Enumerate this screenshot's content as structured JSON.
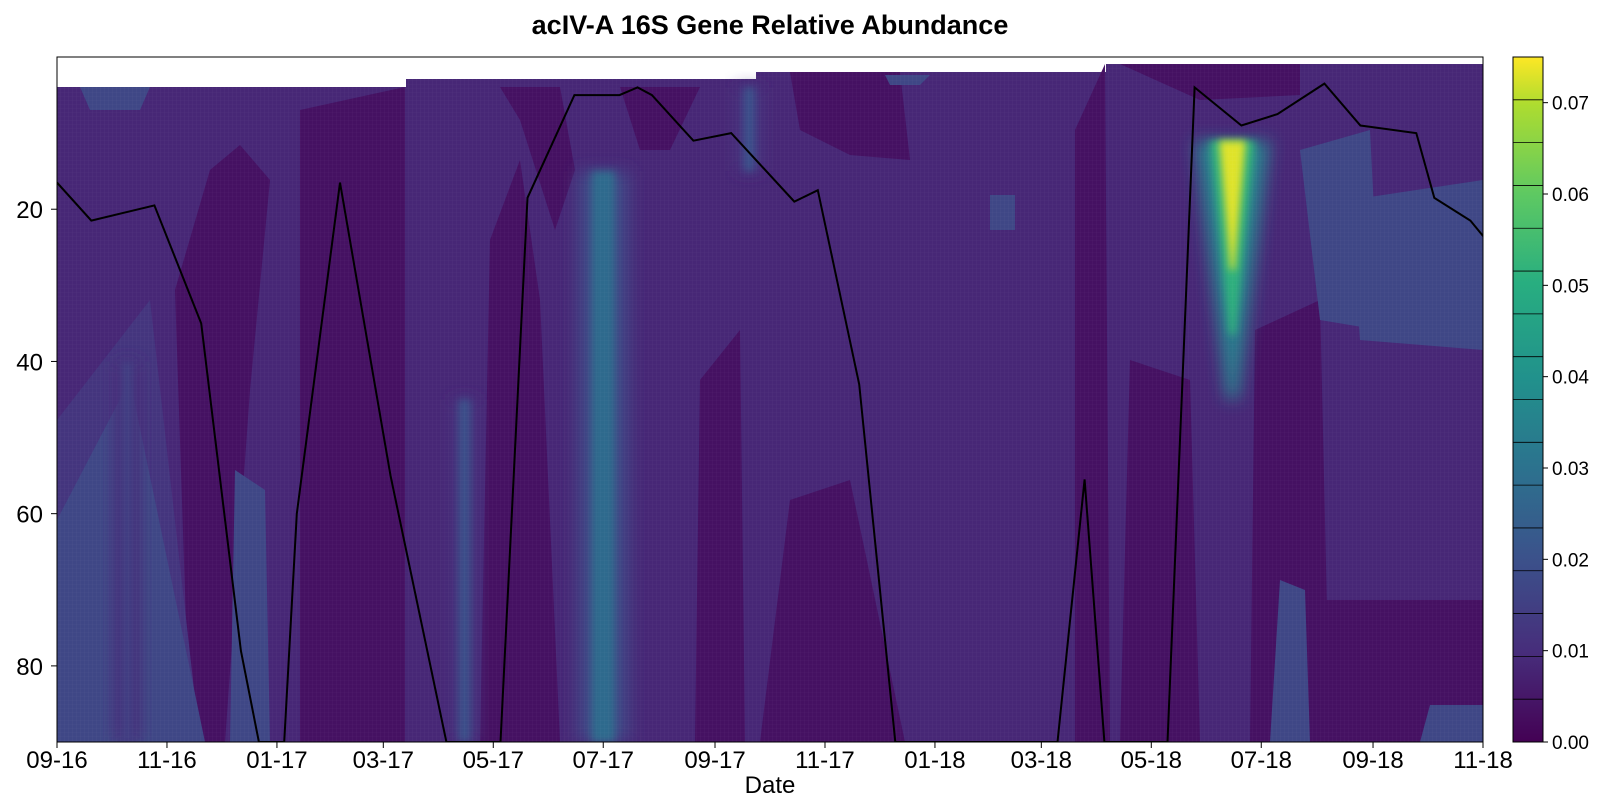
{
  "chart_data": {
    "type": "heatmap",
    "title": "acIV-A 16S Gene Relative Abundance",
    "xlabel": "Date",
    "ylabel": "",
    "x_ticks": [
      "09-16",
      "11-16",
      "01-17",
      "03-17",
      "05-17",
      "07-17",
      "09-17",
      "11-17",
      "01-18",
      "03-18",
      "05-18",
      "07-18",
      "09-18",
      "11-18"
    ],
    "x_range": [
      "2016-09-01",
      "2018-11-01"
    ],
    "y_range": [
      0,
      90
    ],
    "y_inverted": true,
    "y_ticks": [
      20,
      40,
      60,
      80
    ],
    "colorbar": {
      "colormap": "viridis",
      "range": [
        0.0,
        0.075
      ],
      "levels": 16,
      "tick_labels": [
        "0.00",
        "0.01",
        "0.02",
        "0.03",
        "0.04",
        "0.05",
        "0.06",
        "0.07"
      ],
      "tick_values": [
        0.0,
        0.01,
        0.02,
        0.03,
        0.04,
        0.05,
        0.06,
        0.07
      ]
    },
    "heatmap_features": [
      {
        "date": "2017-07-01",
        "depth_range": [
          15,
          90
        ],
        "value": 0.028
      },
      {
        "date": "2018-06-15",
        "depth_range": [
          11,
          45
        ],
        "value": 0.073
      },
      {
        "date": "2017-04-15",
        "depth_range": [
          45,
          90
        ],
        "value": 0.02
      },
      {
        "date": "2017-09-20",
        "depth_range": [
          4,
          15
        ],
        "value": 0.02
      },
      {
        "date": "2016-10-10",
        "depth_range": [
          40,
          90
        ],
        "value": 0.015
      }
    ],
    "line_series": {
      "color": "#000000",
      "points": [
        [
          "2016-09-01",
          16.5
        ],
        [
          "2016-09-20",
          21.5
        ],
        [
          "2016-10-25",
          19.5
        ],
        [
          "2016-11-20",
          35
        ],
        [
          "2016-12-12",
          78
        ],
        [
          "2016-12-22",
          90
        ],
        [
          "2017-01-05",
          90
        ],
        [
          "2017-01-12",
          60
        ],
        [
          "2017-02-05",
          16.5
        ],
        [
          "2017-03-05",
          55
        ],
        [
          "2017-04-05",
          90
        ],
        [
          "2017-05-05",
          90
        ],
        [
          "2017-05-20",
          18.5
        ],
        [
          "2017-06-15",
          5
        ],
        [
          "2017-07-10",
          5
        ],
        [
          "2017-07-20",
          4
        ],
        [
          "2017-07-28",
          5
        ],
        [
          "2017-08-20",
          11
        ],
        [
          "2017-09-10",
          10
        ],
        [
          "2017-10-15",
          19
        ],
        [
          "2017-10-28",
          17.5
        ],
        [
          "2017-11-20",
          43
        ],
        [
          "2017-12-10",
          90
        ],
        [
          "2018-03-10",
          90
        ],
        [
          "2018-03-25",
          55.5
        ],
        [
          "2018-04-05",
          90
        ],
        [
          "2018-05-10",
          90
        ],
        [
          "2018-05-25",
          4
        ],
        [
          "2018-06-20",
          9
        ],
        [
          "2018-07-10",
          7.5
        ],
        [
          "2018-08-05",
          3.5
        ],
        [
          "2018-08-25",
          9
        ],
        [
          "2018-09-25",
          10
        ],
        [
          "2018-10-05",
          18.5
        ],
        [
          "2018-10-25",
          21.5
        ],
        [
          "2018-11-20",
          29
        ]
      ]
    }
  }
}
